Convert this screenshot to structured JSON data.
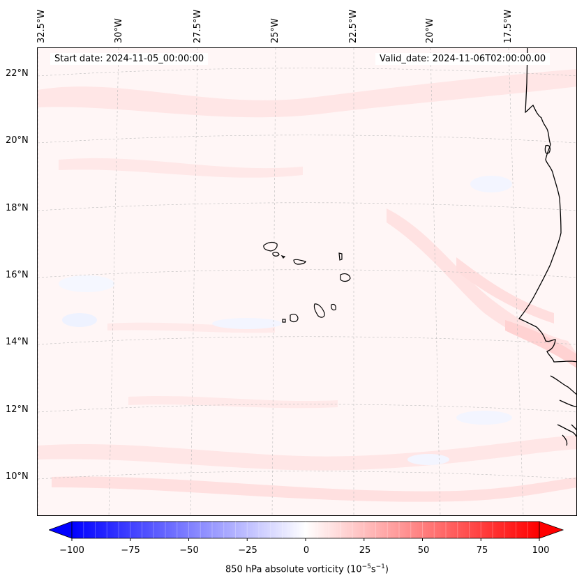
{
  "header": {
    "start_date": "Start date: 2024-11-05_00:00:00",
    "valid_date": "Valid_date: 2024-11-06T02:00:00.00"
  },
  "axes": {
    "lon_ticks": [
      "32.5°W",
      "30°W",
      "27.5°W",
      "25°W",
      "22.5°W",
      "20°W",
      "17.5°W"
    ],
    "lat_ticks": [
      "22°N",
      "20°N",
      "18°N",
      "16°N",
      "14°N",
      "12°N",
      "10°N"
    ]
  },
  "colorbar": {
    "ticks": [
      "−100",
      "−75",
      "−50",
      "−25",
      "0",
      "25",
      "50",
      "75",
      "100"
    ],
    "label_prefix": "850 hPa absolute vorticity (10",
    "label_exp1": "−5",
    "label_mid": "s",
    "label_exp2": "−1",
    "label_suffix": ")",
    "min_color": "#0000ff",
    "mid_color": "#ffffff",
    "max_color": "#ff0000"
  },
  "map": {
    "background_color": "#fff6f6",
    "coast_color": "#000000"
  }
}
